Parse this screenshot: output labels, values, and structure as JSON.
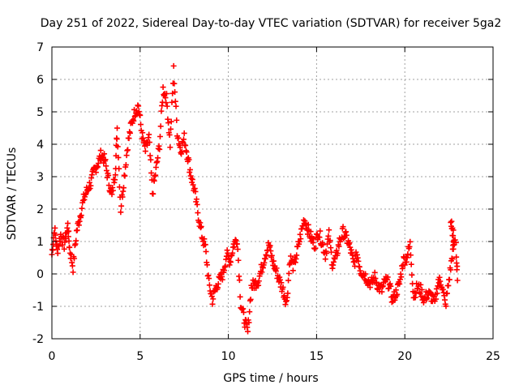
{
  "chart_data": {
    "type": "scatter",
    "title": "Day 251 of 2022, Sidereal Day-to-day VTEC variation (SDTVAR) for receiver 5ga2",
    "xlabel": "GPS time / hours",
    "ylabel": "SDTVAR / TECUs",
    "xlim": [
      0,
      25
    ],
    "ylim": [
      -2,
      7
    ],
    "xticks": [
      0,
      5,
      10,
      15,
      20,
      25
    ],
    "yticks": [
      -2,
      -1,
      0,
      1,
      2,
      3,
      4,
      5,
      6,
      7
    ],
    "grid": true,
    "marker": "+",
    "color": "#ff0000",
    "series": [
      {
        "name": "SDTVAR",
        "trace": [
          [
            0.0,
            0.6
          ],
          [
            0.15,
            1.4
          ],
          [
            0.3,
            0.7
          ],
          [
            0.5,
            1.2
          ],
          [
            0.7,
            0.9
          ],
          [
            0.9,
            1.5
          ],
          [
            1.0,
            0.8
          ],
          [
            1.2,
            0.2
          ],
          [
            1.4,
            1.3
          ],
          [
            1.6,
            1.8
          ],
          [
            1.8,
            2.3
          ],
          [
            2.0,
            2.6
          ],
          [
            2.2,
            2.8
          ],
          [
            2.4,
            3.2
          ],
          [
            2.6,
            3.4
          ],
          [
            2.8,
            3.7
          ],
          [
            3.0,
            3.5
          ],
          [
            3.2,
            2.9
          ],
          [
            3.4,
            2.4
          ],
          [
            3.6,
            3.2
          ],
          [
            3.7,
            4.5
          ],
          [
            3.9,
            2.0
          ],
          [
            4.1,
            3.0
          ],
          [
            4.3,
            4.0
          ],
          [
            4.5,
            4.6
          ],
          [
            4.7,
            5.0
          ],
          [
            4.9,
            5.2
          ],
          [
            5.1,
            4.3
          ],
          [
            5.3,
            3.8
          ],
          [
            5.5,
            4.2
          ],
          [
            5.7,
            2.5
          ],
          [
            5.9,
            3.2
          ],
          [
            6.1,
            4.0
          ],
          [
            6.3,
            5.7
          ],
          [
            6.5,
            5.4
          ],
          [
            6.7,
            4.0
          ],
          [
            6.9,
            6.3
          ],
          [
            7.1,
            4.4
          ],
          [
            7.3,
            3.8
          ],
          [
            7.5,
            4.2
          ],
          [
            7.7,
            3.6
          ],
          [
            7.9,
            3.0
          ],
          [
            8.1,
            2.5
          ],
          [
            8.3,
            1.8
          ],
          [
            8.5,
            1.2
          ],
          [
            8.7,
            0.8
          ],
          [
            8.9,
            -0.3
          ],
          [
            9.1,
            -0.8
          ],
          [
            9.3,
            -0.4
          ],
          [
            9.5,
            -0.2
          ],
          [
            9.7,
            0.0
          ],
          [
            9.9,
            0.6
          ],
          [
            10.1,
            0.4
          ],
          [
            10.3,
            0.9
          ],
          [
            10.5,
            1.1
          ],
          [
            10.7,
            -0.9
          ],
          [
            10.9,
            -1.4
          ],
          [
            11.1,
            -1.8
          ],
          [
            11.3,
            -0.4
          ],
          [
            11.5,
            -0.3
          ],
          [
            11.7,
            -0.2
          ],
          [
            11.9,
            0.2
          ],
          [
            12.1,
            0.6
          ],
          [
            12.3,
            0.9
          ],
          [
            12.5,
            0.4
          ],
          [
            12.7,
            0.1
          ],
          [
            12.9,
            -0.2
          ],
          [
            13.1,
            -0.5
          ],
          [
            13.3,
            -0.9
          ],
          [
            13.5,
            0.5
          ],
          [
            13.7,
            0.2
          ],
          [
            13.9,
            0.7
          ],
          [
            14.1,
            1.2
          ],
          [
            14.3,
            1.7
          ],
          [
            14.5,
            1.4
          ],
          [
            14.7,
            1.1
          ],
          [
            14.9,
            0.9
          ],
          [
            15.1,
            1.3
          ],
          [
            15.3,
            1.0
          ],
          [
            15.5,
            0.6
          ],
          [
            15.7,
            1.2
          ],
          [
            15.9,
            0.3
          ],
          [
            16.1,
            0.5
          ],
          [
            16.3,
            1.0
          ],
          [
            16.5,
            1.3
          ],
          [
            16.7,
            1.1
          ],
          [
            16.9,
            0.8
          ],
          [
            17.1,
            0.3
          ],
          [
            17.3,
            0.6
          ],
          [
            17.5,
            0.1
          ],
          [
            17.7,
            0.0
          ],
          [
            17.9,
            -0.2
          ],
          [
            18.1,
            -0.3
          ],
          [
            18.3,
            -0.1
          ],
          [
            18.5,
            -0.4
          ],
          [
            18.7,
            -0.5
          ],
          [
            18.9,
            -0.2
          ],
          [
            19.1,
            -0.3
          ],
          [
            19.3,
            -0.8
          ],
          [
            19.5,
            -0.6
          ],
          [
            19.7,
            -0.3
          ],
          [
            19.9,
            0.4
          ],
          [
            20.1,
            0.5
          ],
          [
            20.3,
            0.9
          ],
          [
            20.5,
            -0.7
          ],
          [
            20.7,
            -0.4
          ],
          [
            20.9,
            -0.5
          ],
          [
            21.1,
            -0.8
          ],
          [
            21.3,
            -0.6
          ],
          [
            21.5,
            -0.7
          ],
          [
            21.7,
            -0.9
          ],
          [
            21.9,
            -0.2
          ],
          [
            22.1,
            -0.3
          ],
          [
            22.3,
            -1.0
          ],
          [
            22.5,
            -0.2
          ],
          [
            22.7,
            0.6
          ],
          [
            22.8,
            1.0
          ],
          [
            22.6,
            1.6
          ],
          [
            22.9,
            0.8
          ],
          [
            23.0,
            -0.2
          ]
        ]
      }
    ]
  }
}
